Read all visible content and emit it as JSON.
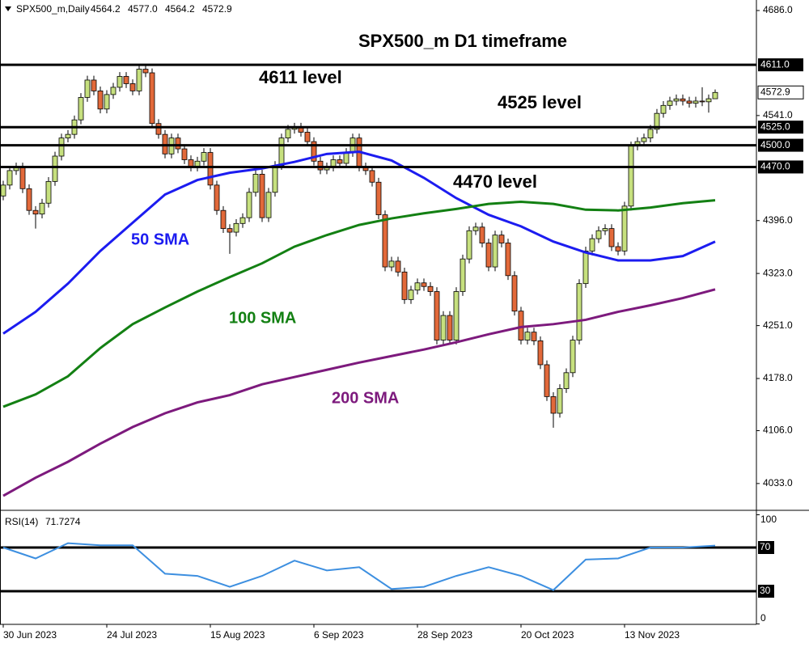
{
  "chart_data": {
    "type": "candlestick",
    "title": "SPX500_m D1 timeframe",
    "header": {
      "symbol": "SPX500_m,Daily",
      "ohlc_labels": [
        "4564.2",
        "4577.0",
        "4564.2",
        "4572.9"
      ]
    },
    "categories": [
      "30 Jun 2023",
      null,
      null,
      null,
      null,
      null,
      null,
      null,
      null,
      null,
      null,
      null,
      null,
      null,
      null,
      null,
      "24 Jul 2023",
      null,
      null,
      null,
      null,
      null,
      null,
      null,
      null,
      null,
      null,
      null,
      null,
      null,
      null,
      null,
      "15 Aug 2023",
      null,
      null,
      null,
      null,
      null,
      null,
      null,
      null,
      null,
      null,
      null,
      null,
      null,
      null,
      null,
      "6 Sep 2023",
      null,
      null,
      null,
      null,
      null,
      null,
      null,
      null,
      null,
      null,
      null,
      null,
      null,
      null,
      null,
      "28 Sep 2023",
      null,
      null,
      null,
      null,
      null,
      null,
      null,
      null,
      null,
      null,
      null,
      null,
      null,
      null,
      null,
      "20 Oct 2023",
      null,
      null,
      null,
      null,
      null,
      null,
      null,
      null,
      null,
      null,
      null,
      null,
      null,
      null,
      null,
      "13 Nov 2023",
      null,
      null,
      null,
      null,
      null,
      null,
      null,
      null,
      null,
      null,
      null,
      null,
      null,
      null
    ],
    "open": [
      4430,
      4445,
      4465,
      4470,
      4440,
      4410,
      4405,
      4420,
      4450,
      4485,
      4510,
      4515,
      4535,
      4566,
      4590,
      4575,
      4550,
      4570,
      4580,
      4595,
      4585,
      4575,
      4605,
      4600,
      4530,
      4515,
      4488,
      4510,
      4495,
      4480,
      4470,
      4478,
      4490,
      4445,
      4410,
      4385,
      4380,
      4392,
      4400,
      4435,
      4460,
      4400,
      4435,
      4472,
      4510,
      4522,
      4525,
      4518,
      4505,
      4478,
      4466,
      4470,
      4480,
      4475,
      4490,
      4510,
      4470,
      4465,
      4449,
      4404,
      4332,
      4340,
      4325,
      4287,
      4300,
      4310,
      4305,
      4298,
      4231,
      4265,
      4231,
      4298,
      4343,
      4382,
      4387,
      4365,
      4332,
      4376,
      4365,
      4320,
      4271,
      4231,
      4242,
      4230,
      4197,
      4153,
      4130,
      4164,
      4186,
      4231,
      4309,
      4354,
      4371,
      4382,
      4385,
      4360,
      4354,
      4416,
      4499,
      4505,
      4510,
      4522,
      4544,
      4555,
      4561,
      4564,
      4561,
      4558,
      4561,
      4560,
      4564.2
    ],
    "high": [
      4451,
      4471,
      4476,
      4476,
      4446,
      4416,
      4426,
      4456,
      4491,
      4516,
      4521,
      4541,
      4572,
      4596,
      4596,
      4581,
      4576,
      4586,
      4601,
      4601,
      4591,
      4611,
      4611,
      4606,
      4536,
      4521,
      4516,
      4516,
      4501,
      4486,
      4484,
      4496,
      4496,
      4451,
      4416,
      4391,
      4398,
      4406,
      4441,
      4466,
      4466,
      4441,
      4478,
      4516,
      4528,
      4531,
      4531,
      4524,
      4511,
      4484,
      4476,
      4486,
      4486,
      4496,
      4516,
      4516,
      4476,
      4471,
      4455,
      4410,
      4346,
      4346,
      4331,
      4306,
      4316,
      4316,
      4311,
      4304,
      4271,
      4271,
      4304,
      4349,
      4388,
      4393,
      4393,
      4371,
      4382,
      4382,
      4371,
      4326,
      4277,
      4248,
      4248,
      4236,
      4203,
      4159,
      4170,
      4192,
      4237,
      4315,
      4360,
      4377,
      4388,
      4391,
      4391,
      4366,
      4422,
      4505,
      4511,
      4516,
      4528,
      4550,
      4561,
      4567,
      4570,
      4570,
      4567,
      4567,
      4580,
      4570,
      4577.0
    ],
    "low": [
      4424,
      4439,
      4459,
      4434,
      4404,
      4385,
      4399,
      4414,
      4444,
      4479,
      4504,
      4509,
      4529,
      4560,
      4569,
      4544,
      4544,
      4564,
      4574,
      4579,
      4569,
      4569,
      4594,
      4524,
      4509,
      4482,
      4482,
      4489,
      4474,
      4464,
      4464,
      4472,
      4439,
      4404,
      4379,
      4350,
      4374,
      4386,
      4394,
      4429,
      4394,
      4394,
      4429,
      4466,
      4504,
      4516,
      4512,
      4499,
      4472,
      4460,
      4460,
      4464,
      4469,
      4469,
      4484,
      4464,
      4459,
      4443,
      4398,
      4326,
      4326,
      4319,
      4281,
      4281,
      4294,
      4299,
      4292,
      4225,
      4225,
      4225,
      4225,
      4292,
      4337,
      4376,
      4359,
      4326,
      4326,
      4359,
      4314,
      4265,
      4225,
      4225,
      4224,
      4191,
      4147,
      4110,
      4124,
      4158,
      4180,
      4225,
      4303,
      4348,
      4365,
      4376,
      4354,
      4348,
      4348,
      4410,
      4493,
      4499,
      4504,
      4516,
      4538,
      4549,
      4555,
      4555,
      4552,
      4552,
      4554,
      4545,
      4564.2
    ],
    "close": [
      4445,
      4465,
      4470,
      4440,
      4410,
      4405,
      4420,
      4450,
      4485,
      4510,
      4515,
      4535,
      4566,
      4590,
      4575,
      4550,
      4570,
      4580,
      4595,
      4585,
      4575,
      4605,
      4600,
      4530,
      4515,
      4488,
      4510,
      4495,
      4480,
      4470,
      4478,
      4490,
      4445,
      4410,
      4385,
      4380,
      4392,
      4400,
      4435,
      4460,
      4400,
      4435,
      4472,
      4510,
      4522,
      4525,
      4518,
      4505,
      4478,
      4466,
      4470,
      4480,
      4475,
      4490,
      4510,
      4470,
      4465,
      4449,
      4404,
      4332,
      4340,
      4325,
      4287,
      4300,
      4310,
      4305,
      4298,
      4231,
      4265,
      4231,
      4298,
      4343,
      4382,
      4387,
      4365,
      4332,
      4376,
      4365,
      4320,
      4271,
      4231,
      4242,
      4230,
      4197,
      4153,
      4130,
      4164,
      4186,
      4231,
      4309,
      4354,
      4371,
      4382,
      4385,
      4360,
      4354,
      4416,
      4499,
      4505,
      4510,
      4522,
      4544,
      4555,
      4561,
      4564,
      4561,
      4558,
      4561,
      4560,
      4564.2,
      4572.9
    ],
    "up_color": "#c6e07e",
    "down_color": "#e2693a",
    "ylim": [
      3996,
      4700.5
    ],
    "yticks": [
      {
        "value": 4686,
        "label": "4686.0"
      },
      {
        "value": 4541,
        "label": "4541.0"
      },
      {
        "value": 4396,
        "label": "4396.0"
      },
      {
        "value": 4323,
        "label": "4323.0"
      },
      {
        "value": 4251,
        "label": "4251.0"
      },
      {
        "value": 4178,
        "label": "4178.0"
      },
      {
        "value": 4106,
        "label": "4106.0"
      },
      {
        "value": 4033,
        "label": "4033.0"
      }
    ],
    "levels": [
      {
        "value": 4611,
        "label": "4611.0",
        "annotation": "4611 level"
      },
      {
        "value": 4525,
        "label": "4525.0",
        "annotation": "4525 level"
      },
      {
        "value": 4500,
        "label": "4500.0"
      },
      {
        "value": 4470,
        "label": "4470.0",
        "annotation": "4470 level"
      }
    ],
    "sma": [
      {
        "name": "50 SMA",
        "color": "#1c1cf0",
        "x": [
          0,
          5,
          10,
          15,
          20,
          25,
          30,
          35,
          40,
          45,
          50,
          55,
          60,
          65,
          70,
          75,
          80,
          85,
          90,
          95,
          100,
          105,
          110
        ],
        "values": [
          4240,
          4270,
          4309,
          4354,
          4393,
          4432,
          4452,
          4462,
          4468,
          4477,
          4488,
          4491,
          4479,
          4455,
          4427,
          4404,
          4388,
          4367,
          4352,
          4341,
          4341,
          4347,
          4367
        ]
      },
      {
        "name": "100 SMA",
        "color": "#138013",
        "x": [
          0,
          5,
          10,
          15,
          20,
          25,
          30,
          35,
          40,
          45,
          50,
          55,
          60,
          65,
          70,
          75,
          80,
          85,
          90,
          95,
          100,
          105,
          110
        ],
        "values": [
          4139,
          4156,
          4181,
          4220,
          4253,
          4276,
          4298,
          4318,
          4337,
          4360,
          4376,
          4390,
          4399,
          4406,
          4412,
          4419,
          4422,
          4419,
          4411,
          4410,
          4414,
          4420,
          4424
        ]
      },
      {
        "name": "200 SMA",
        "color": "#7d1a7d",
        "x": [
          0,
          5,
          10,
          15,
          20,
          25,
          30,
          35,
          40,
          45,
          50,
          55,
          60,
          65,
          70,
          75,
          80,
          85,
          90,
          95,
          100,
          105,
          110
        ],
        "values": [
          4016,
          4041,
          4063,
          4088,
          4111,
          4130,
          4145,
          4155,
          4170,
          4180,
          4190,
          4200,
          4209,
          4218,
          4228,
          4239,
          4249,
          4253,
          4259,
          4270,
          4279,
          4289,
          4301
        ]
      }
    ],
    "rsi": {
      "name": "RSI(14)",
      "color": "#3d8fe0",
      "x": [
        0,
        5,
        10,
        15,
        20,
        25,
        30,
        35,
        40,
        45,
        50,
        55,
        60,
        65,
        70,
        75,
        80,
        85,
        90,
        95,
        100,
        105,
        110
      ],
      "values": [
        70,
        60,
        74,
        72,
        72,
        46,
        44,
        34,
        44,
        58,
        49,
        52,
        32,
        34,
        44,
        52,
        44,
        31,
        59,
        60,
        70,
        70,
        71.7274
      ],
      "ylim": [
        0,
        100
      ],
      "yticks": [
        100,
        0
      ],
      "levels": [
        70,
        30
      ]
    }
  }
}
